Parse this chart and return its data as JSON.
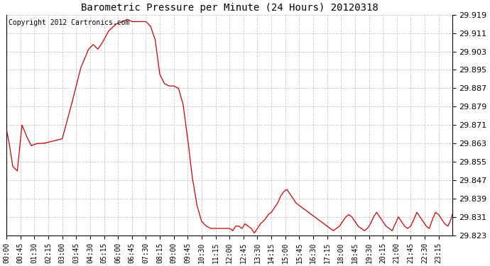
{
  "title": "Barometric Pressure per Minute (24 Hours) 20120318",
  "copyright": "Copyright 2012 Cartronics.com",
  "line_color": "#cc0000",
  "background_color": "#ffffff",
  "grid_color": "#c8c8c8",
  "ylim": [
    29.823,
    29.919
  ],
  "yticks": [
    29.823,
    29.831,
    29.839,
    29.847,
    29.855,
    29.863,
    29.871,
    29.879,
    29.887,
    29.895,
    29.903,
    29.911,
    29.919
  ],
  "xtick_labels": [
    "00:00",
    "00:45",
    "01:30",
    "02:15",
    "03:00",
    "03:45",
    "04:30",
    "05:15",
    "06:00",
    "06:45",
    "07:30",
    "08:15",
    "09:00",
    "09:45",
    "10:30",
    "11:15",
    "12:00",
    "12:45",
    "13:30",
    "14:15",
    "15:00",
    "15:45",
    "16:30",
    "17:15",
    "18:00",
    "18:45",
    "19:30",
    "20:15",
    "21:00",
    "21:45",
    "22:30",
    "23:15"
  ],
  "keypoints": [
    [
      0,
      29.869
    ],
    [
      10,
      29.862
    ],
    [
      20,
      29.853
    ],
    [
      35,
      29.851
    ],
    [
      50,
      29.871
    ],
    [
      65,
      29.866
    ],
    [
      80,
      29.862
    ],
    [
      100,
      29.863
    ],
    [
      120,
      29.863
    ],
    [
      150,
      29.864
    ],
    [
      180,
      29.865
    ],
    [
      210,
      29.88
    ],
    [
      240,
      29.896
    ],
    [
      265,
      29.904
    ],
    [
      280,
      29.906
    ],
    [
      295,
      29.904
    ],
    [
      310,
      29.907
    ],
    [
      330,
      29.912
    ],
    [
      355,
      29.915
    ],
    [
      375,
      29.916
    ],
    [
      390,
      29.917
    ],
    [
      405,
      29.916
    ],
    [
      420,
      29.916
    ],
    [
      435,
      29.916
    ],
    [
      450,
      29.916
    ],
    [
      465,
      29.914
    ],
    [
      480,
      29.908
    ],
    [
      495,
      29.893
    ],
    [
      510,
      29.889
    ],
    [
      525,
      29.888
    ],
    [
      540,
      29.888
    ],
    [
      555,
      29.887
    ],
    [
      570,
      29.88
    ],
    [
      585,
      29.865
    ],
    [
      600,
      29.848
    ],
    [
      615,
      29.836
    ],
    [
      630,
      29.829
    ],
    [
      645,
      29.827
    ],
    [
      660,
      29.826
    ],
    [
      675,
      29.826
    ],
    [
      690,
      29.826
    ],
    [
      705,
      29.826
    ],
    [
      720,
      29.826
    ],
    [
      730,
      29.825
    ],
    [
      740,
      29.827
    ],
    [
      750,
      29.827
    ],
    [
      760,
      29.826
    ],
    [
      770,
      29.828
    ],
    [
      780,
      29.827
    ],
    [
      790,
      29.826
    ],
    [
      800,
      29.824
    ],
    [
      810,
      29.826
    ],
    [
      820,
      29.828
    ],
    [
      835,
      29.83
    ],
    [
      845,
      29.832
    ],
    [
      855,
      29.833
    ],
    [
      865,
      29.835
    ],
    [
      875,
      29.837
    ],
    [
      885,
      29.84
    ],
    [
      895,
      29.842
    ],
    [
      905,
      29.843
    ],
    [
      915,
      29.841
    ],
    [
      925,
      29.839
    ],
    [
      935,
      29.837
    ],
    [
      945,
      29.836
    ],
    [
      955,
      29.835
    ],
    [
      965,
      29.834
    ],
    [
      975,
      29.833
    ],
    [
      985,
      29.832
    ],
    [
      995,
      29.831
    ],
    [
      1005,
      29.83
    ],
    [
      1015,
      29.829
    ],
    [
      1025,
      29.828
    ],
    [
      1035,
      29.827
    ],
    [
      1045,
      29.826
    ],
    [
      1055,
      29.825
    ],
    [
      1065,
      29.826
    ],
    [
      1075,
      29.827
    ],
    [
      1085,
      29.829
    ],
    [
      1095,
      29.831
    ],
    [
      1105,
      29.832
    ],
    [
      1115,
      29.831
    ],
    [
      1125,
      29.829
    ],
    [
      1135,
      29.827
    ],
    [
      1145,
      29.826
    ],
    [
      1155,
      29.825
    ],
    [
      1165,
      29.826
    ],
    [
      1175,
      29.828
    ],
    [
      1185,
      29.831
    ],
    [
      1195,
      29.833
    ],
    [
      1205,
      29.831
    ],
    [
      1215,
      29.829
    ],
    [
      1225,
      29.827
    ],
    [
      1235,
      29.826
    ],
    [
      1245,
      29.825
    ],
    [
      1255,
      29.828
    ],
    [
      1265,
      29.831
    ],
    [
      1275,
      29.829
    ],
    [
      1285,
      29.827
    ],
    [
      1295,
      29.826
    ],
    [
      1305,
      29.827
    ],
    [
      1315,
      29.83
    ],
    [
      1325,
      29.833
    ],
    [
      1335,
      29.831
    ],
    [
      1345,
      29.829
    ],
    [
      1355,
      29.827
    ],
    [
      1365,
      29.826
    ],
    [
      1375,
      29.83
    ],
    [
      1385,
      29.833
    ],
    [
      1395,
      29.832
    ],
    [
      1405,
      29.83
    ],
    [
      1415,
      29.828
    ],
    [
      1425,
      29.827
    ],
    [
      1435,
      29.83
    ],
    [
      1439,
      29.832
    ]
  ]
}
